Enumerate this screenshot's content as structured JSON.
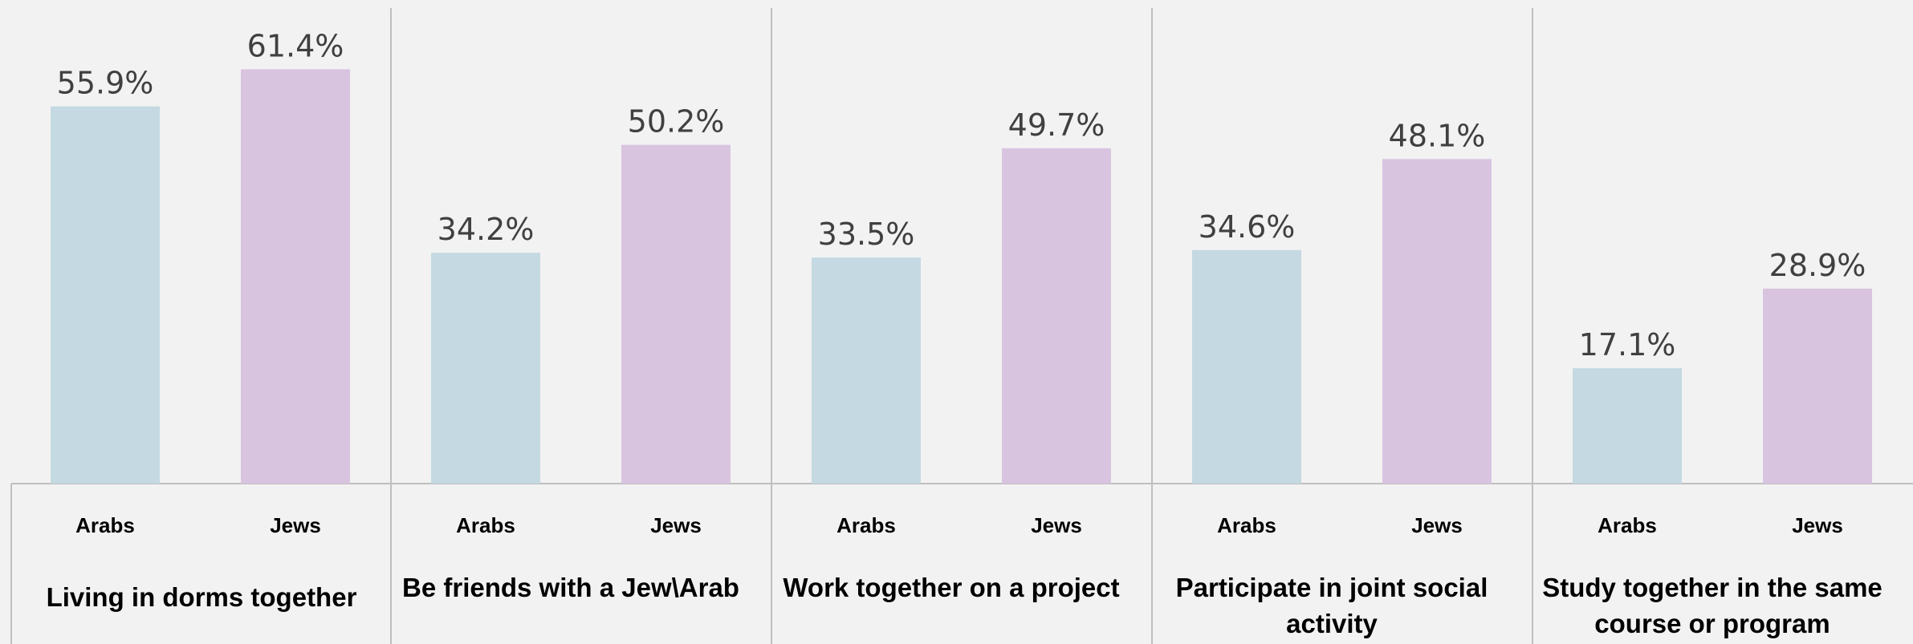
{
  "chart_data": {
    "type": "bar",
    "series_names": [
      "Arabs",
      "Jews"
    ],
    "colors": {
      "Arabs": "#c4d9e1",
      "Jews": "#d9c4e0",
      "value_label": "#404040",
      "divider": "#bfbfbf",
      "background": "#f2f2f2"
    },
    "ylim": [
      0,
      70
    ],
    "groups": [
      {
        "label": "Living in dorms together",
        "label_lines": [
          "Living in dorms together"
        ],
        "categories": [
          "Arabs",
          "Jews"
        ],
        "values": [
          55.9,
          61.4
        ],
        "value_labels": [
          "55.9%",
          "61.4%"
        ]
      },
      {
        "label": "Be friends with a Jew\\Arab",
        "label_lines": [
          "Be friends with a Jew\\Arab"
        ],
        "categories": [
          "Arabs",
          "Jews"
        ],
        "values": [
          34.2,
          50.2
        ],
        "value_labels": [
          "34.2%",
          "50.2%"
        ]
      },
      {
        "label": "Work together on a project",
        "label_lines": [
          "Work together on a project"
        ],
        "categories": [
          "Arabs",
          "Jews"
        ],
        "values": [
          33.5,
          49.7
        ],
        "value_labels": [
          "33.5%",
          "49.7%"
        ]
      },
      {
        "label": "Participate in joint social activity",
        "label_lines": [
          "Participate in joint social",
          "activity"
        ],
        "categories": [
          "Arabs",
          "Jews"
        ],
        "values": [
          34.6,
          48.1
        ],
        "value_labels": [
          "34.6%",
          "48.1%"
        ]
      },
      {
        "label": "Study together in the same course or program",
        "label_lines": [
          "Study together in the same",
          "course or program"
        ],
        "categories": [
          "Arabs",
          "Jews"
        ],
        "values": [
          17.1,
          28.9
        ],
        "value_labels": [
          "17.1%",
          "28.9%"
        ]
      }
    ]
  }
}
